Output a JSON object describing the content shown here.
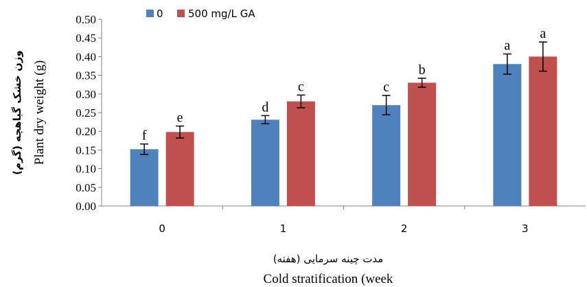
{
  "chart_data": {
    "type": "bar",
    "categories": [
      "0",
      "1",
      "2",
      "3"
    ],
    "series": [
      {
        "name": "0",
        "color": "#4F81BD",
        "values": [
          0.152,
          0.231,
          0.27,
          0.38
        ],
        "errors": [
          0.014,
          0.011,
          0.026,
          0.027
        ],
        "labels": [
          "f",
          "d",
          "c",
          "a"
        ]
      },
      {
        "name": "500 mg/L GA",
        "color": "#C0504D",
        "values": [
          0.198,
          0.28,
          0.33,
          0.4
        ],
        "errors": [
          0.016,
          0.017,
          0.012,
          0.039
        ],
        "labels": [
          "e",
          "c",
          "b",
          "a"
        ]
      }
    ],
    "ylim": [
      0,
      0.5
    ],
    "yticks": [
      "0.00",
      "0.05",
      "0.10",
      "0.15",
      "0.20",
      "0.25",
      "0.30",
      "0.35",
      "0.40",
      "0.45",
      "0.50"
    ],
    "ylabel_fa": "وزن خشک گیاهچه (گرم)",
    "ylabel_en": "Plant dry weight (g)",
    "xlabel_fa": "مدت چینه سرمایی (هفته)",
    "xlabel_en": "Cold stratification (week",
    "legend_position": "top",
    "grid": false
  }
}
